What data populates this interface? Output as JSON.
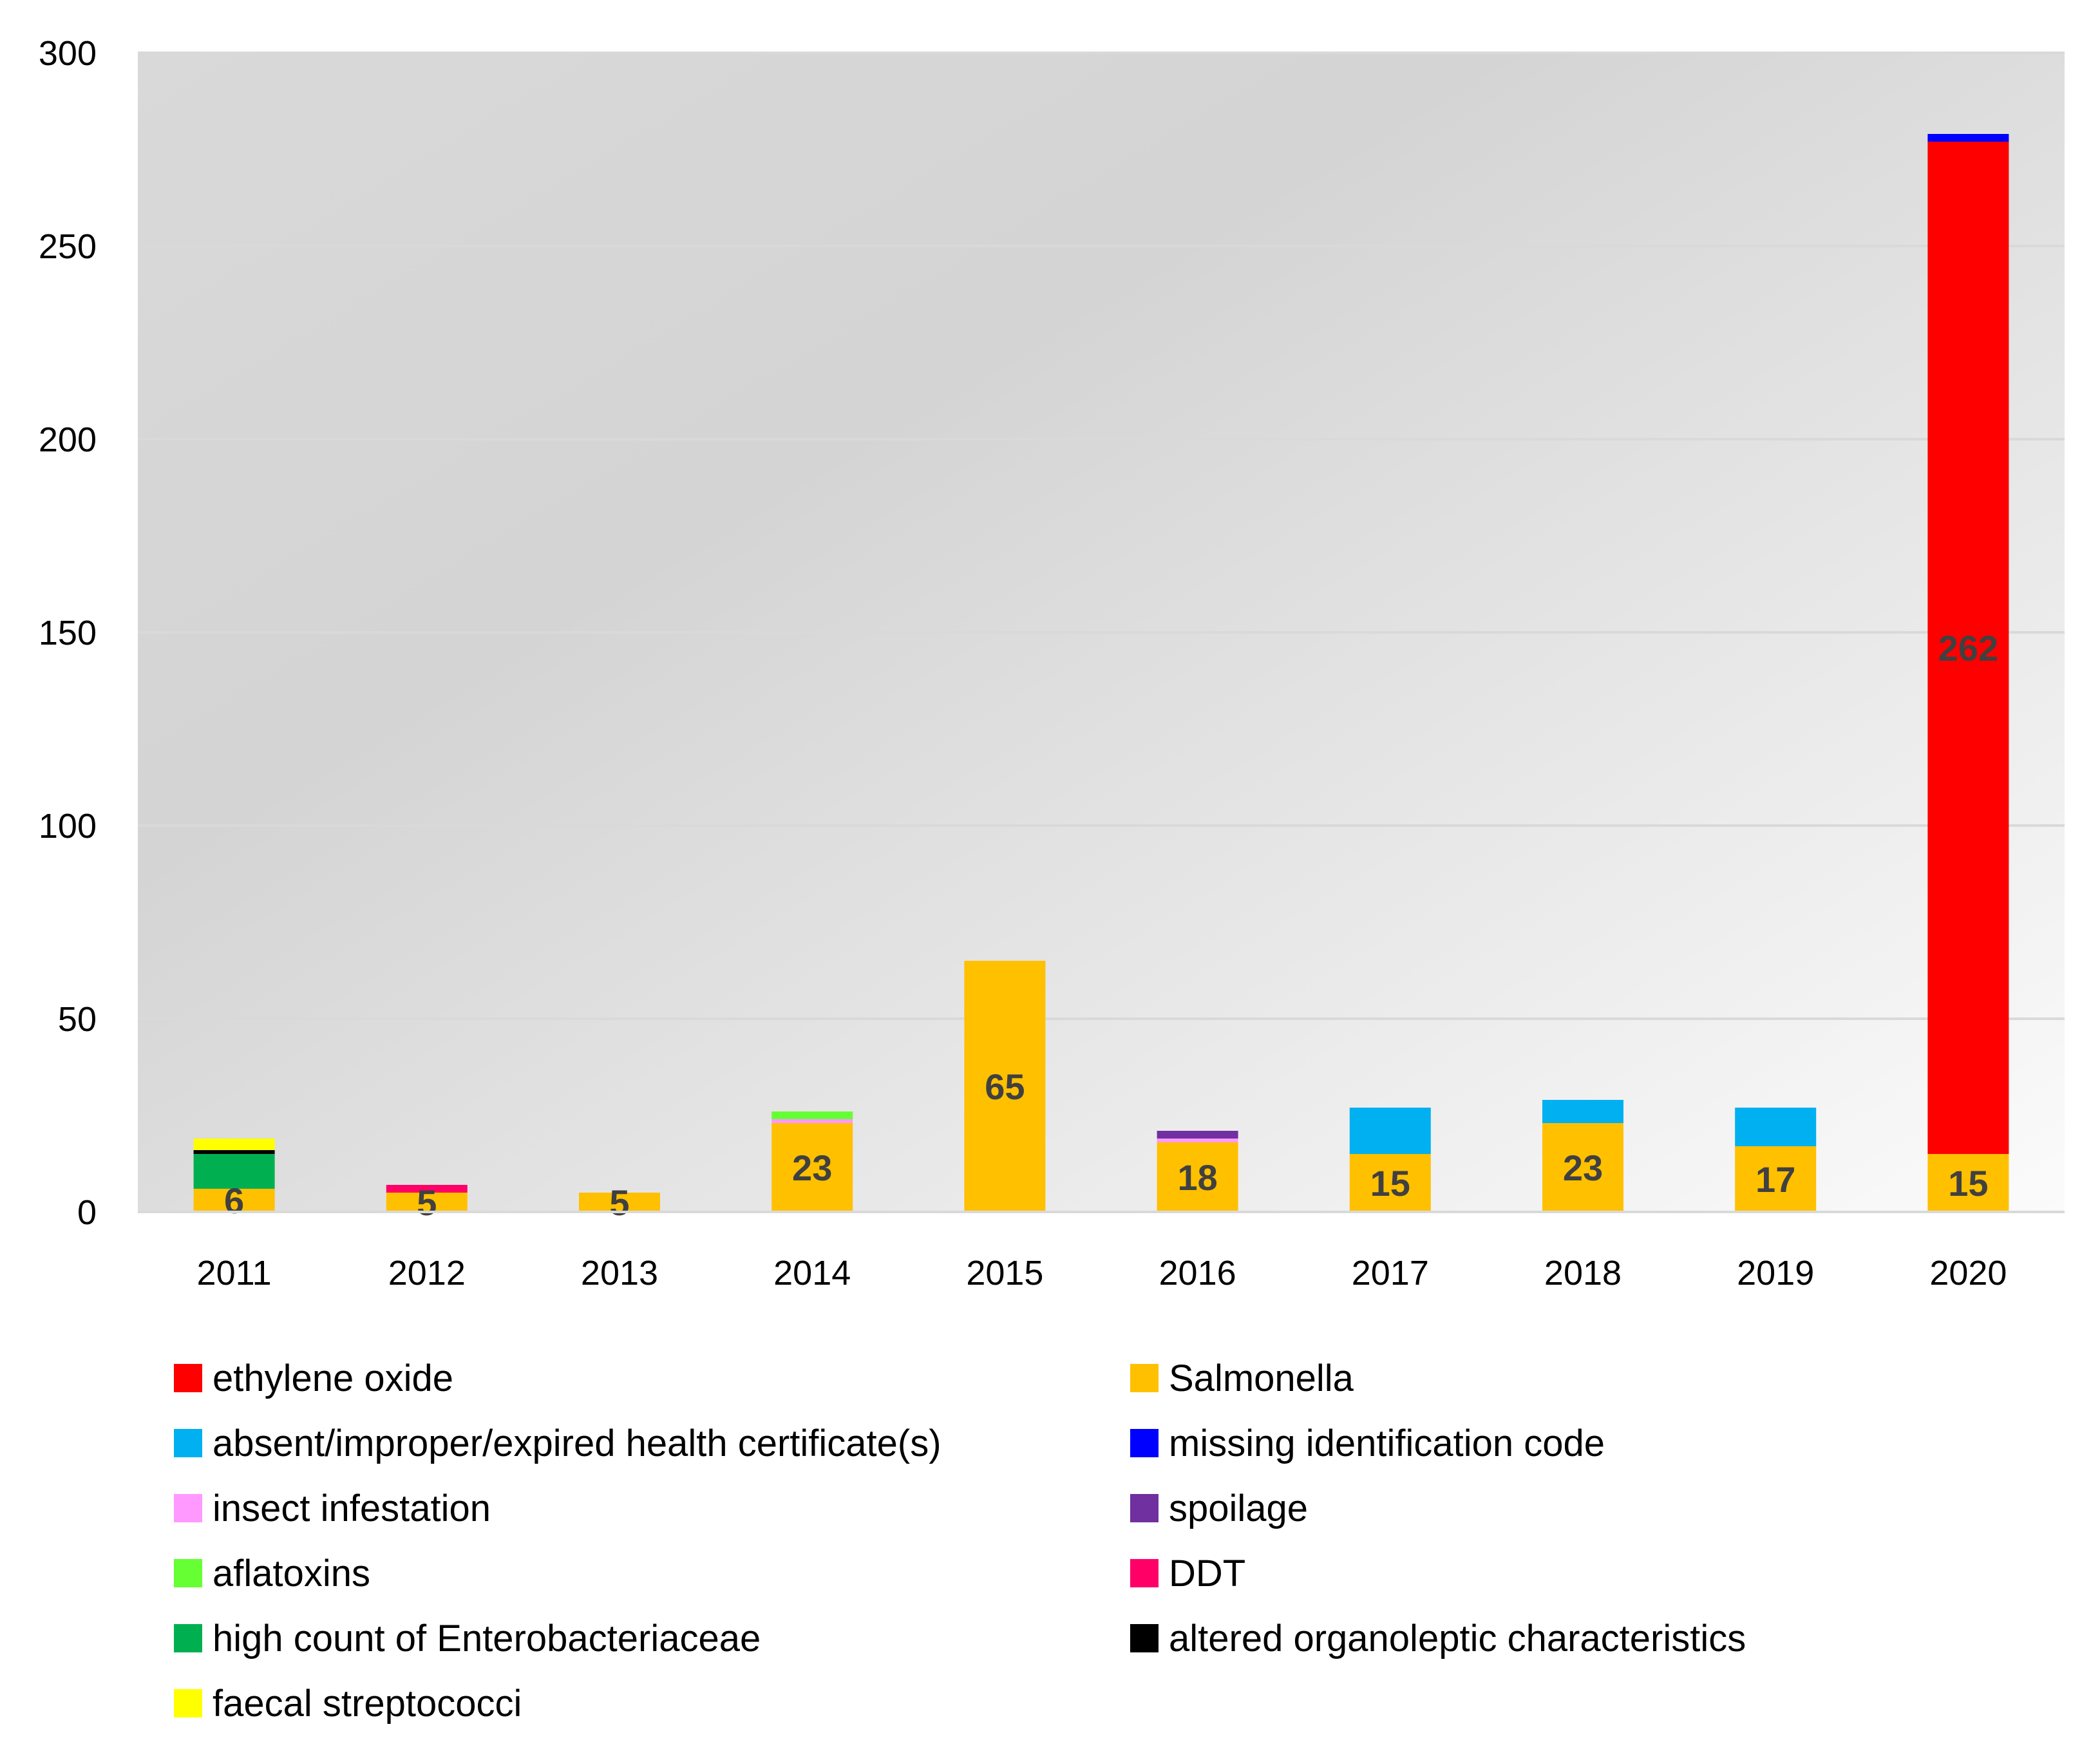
{
  "chart_data": {
    "type": "bar",
    "stacked": true,
    "title": "",
    "xlabel": "",
    "ylabel": "",
    "ylim": [
      0,
      300
    ],
    "yticks": [
      0,
      50,
      100,
      150,
      200,
      250,
      300
    ],
    "grid": true,
    "legend_position": "bottom",
    "categories": [
      "2011",
      "2012",
      "2013",
      "2014",
      "2015",
      "2016",
      "2017",
      "2018",
      "2019",
      "2020"
    ],
    "series": [
      {
        "name": "Salmonella",
        "color": "#FFC000",
        "values": [
          6,
          5,
          5,
          23,
          65,
          18,
          15,
          23,
          17,
          15
        ]
      },
      {
        "name": "ethylene oxide",
        "color": "#FF0000",
        "values": [
          0,
          0,
          0,
          0,
          0,
          0,
          0,
          0,
          0,
          262
        ]
      },
      {
        "name": "absent/improper/expired health certificate(s)",
        "color": "#00B0F0",
        "values": [
          0,
          0,
          0,
          0,
          0,
          0,
          12,
          6,
          10,
          0
        ]
      },
      {
        "name": "missing identification code",
        "color": "#0000FF",
        "values": [
          0,
          0,
          0,
          0,
          0,
          0,
          0,
          0,
          0,
          2
        ]
      },
      {
        "name": "insect infestation",
        "color": "#FF99FF",
        "values": [
          0,
          0,
          0,
          1,
          0,
          1,
          0,
          0,
          0,
          0
        ]
      },
      {
        "name": "spoilage",
        "color": "#7030A0",
        "values": [
          0,
          0,
          0,
          0,
          0,
          2,
          0,
          0,
          0,
          0
        ]
      },
      {
        "name": "aflatoxins",
        "color": "#66FF33",
        "values": [
          0,
          0,
          0,
          2,
          0,
          0,
          0,
          0,
          0,
          0
        ]
      },
      {
        "name": "DDT",
        "color": "#FF0066",
        "values": [
          0,
          2,
          0,
          0,
          0,
          0,
          0,
          0,
          0,
          0
        ]
      },
      {
        "name": "high count of Enterobacteriaceae",
        "color": "#00B050",
        "values": [
          9,
          0,
          0,
          0,
          0,
          0,
          0,
          0,
          0,
          0
        ]
      },
      {
        "name": "altered organoleptic characteristics",
        "color": "#000000",
        "values": [
          1,
          0,
          0,
          0,
          0,
          0,
          0,
          0,
          0,
          0
        ]
      },
      {
        "name": "faecal streptococci",
        "color": "#FFFF00",
        "values": [
          3,
          0,
          0,
          0,
          0,
          0,
          0,
          0,
          0,
          0
        ]
      }
    ],
    "data_labels": [
      {
        "category": "2011",
        "series": "Salmonella",
        "text": "6"
      },
      {
        "category": "2012",
        "series": "Salmonella",
        "text": "5"
      },
      {
        "category": "2013",
        "series": "Salmonella",
        "text": "5"
      },
      {
        "category": "2014",
        "series": "Salmonella",
        "text": "23"
      },
      {
        "category": "2015",
        "series": "Salmonella",
        "text": "65"
      },
      {
        "category": "2016",
        "series": "Salmonella",
        "text": "18"
      },
      {
        "category": "2017",
        "series": "Salmonella",
        "text": "15"
      },
      {
        "category": "2018",
        "series": "Salmonella",
        "text": "23"
      },
      {
        "category": "2019",
        "series": "Salmonella",
        "text": "17"
      },
      {
        "category": "2020",
        "series": "Salmonella",
        "text": "15"
      },
      {
        "category": "2020",
        "series": "ethylene oxide",
        "text": "262"
      }
    ],
    "legend_order": [
      "ethylene oxide",
      "Salmonella",
      "absent/improper/expired health certificate(s)",
      "missing identification code",
      "insect infestation",
      "spoilage",
      "aflatoxins",
      "DDT",
      "high count of Enterobacteriaceae",
      "altered organoleptic characteristics",
      "faecal streptococci"
    ]
  }
}
